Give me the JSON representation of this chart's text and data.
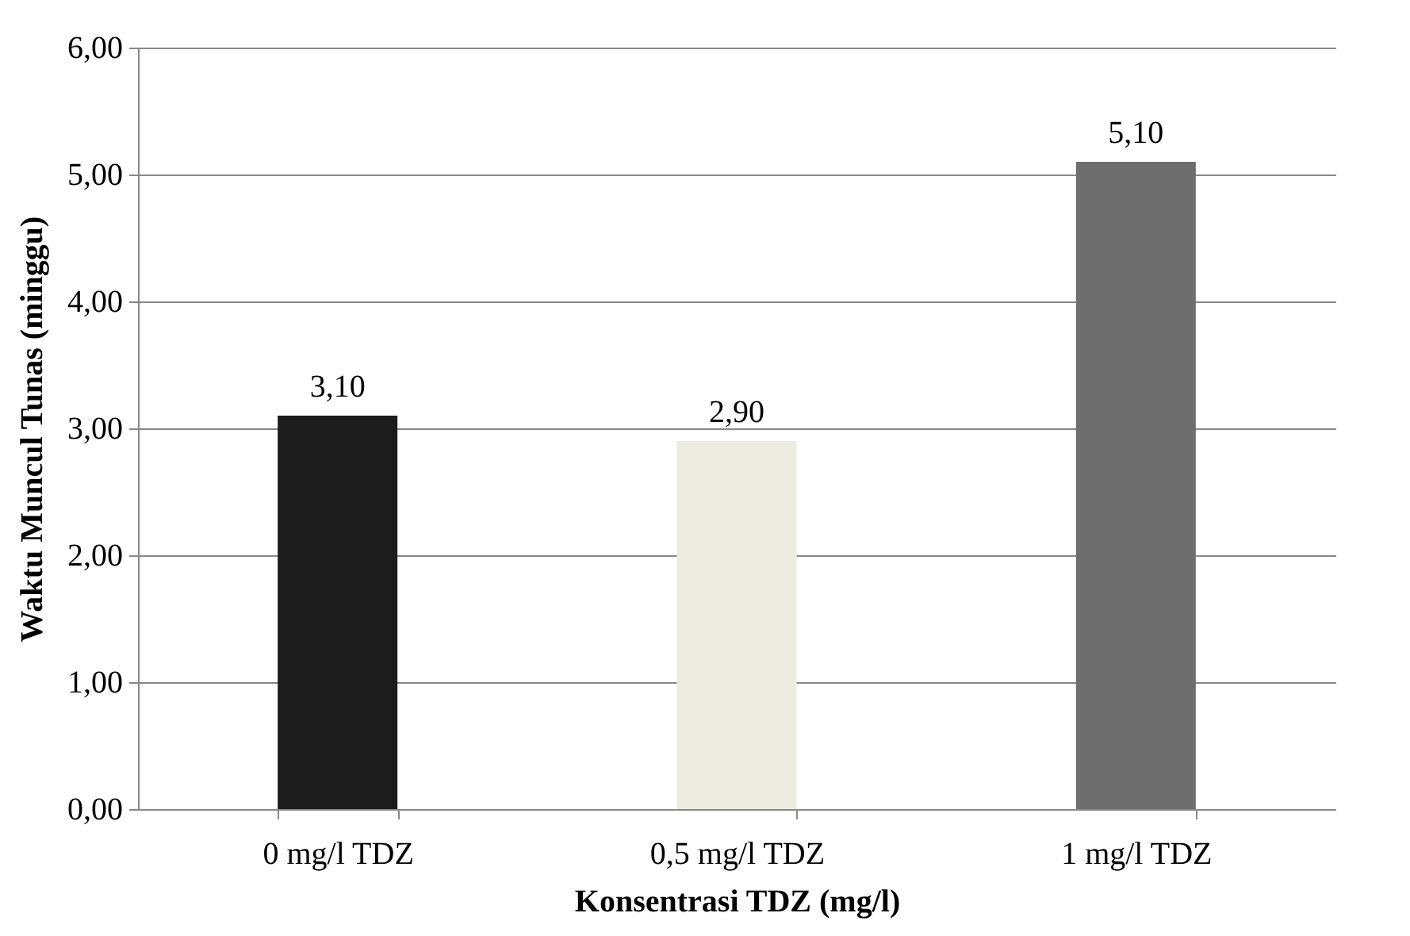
{
  "chart_data": {
    "type": "bar",
    "xlabel": "Konsentrasi TDZ (mg/l)",
    "ylabel": "Waktu Muncul Tunas (minggu)",
    "categories": [
      "0 mg/l TDZ",
      "0,5 mg/l TDZ",
      "1 mg/l TDZ"
    ],
    "values": [
      3.1,
      2.9,
      5.1
    ],
    "colors": [
      "#1c1c1c",
      "#ecebdf",
      "#6e6e6e"
    ],
    "value_labels": [
      "3,10",
      "2,90",
      "5,10"
    ],
    "ylim": [
      0,
      6
    ],
    "yticks": [
      {
        "value": 0,
        "label": "0,00"
      },
      {
        "value": 1,
        "label": "1,00"
      },
      {
        "value": 2,
        "label": "2,00"
      },
      {
        "value": 3,
        "label": "3,00"
      },
      {
        "value": 4,
        "label": "4,00"
      },
      {
        "value": 5,
        "label": "5,00"
      },
      {
        "value": 6,
        "label": "6,00"
      }
    ],
    "grid": "y"
  }
}
